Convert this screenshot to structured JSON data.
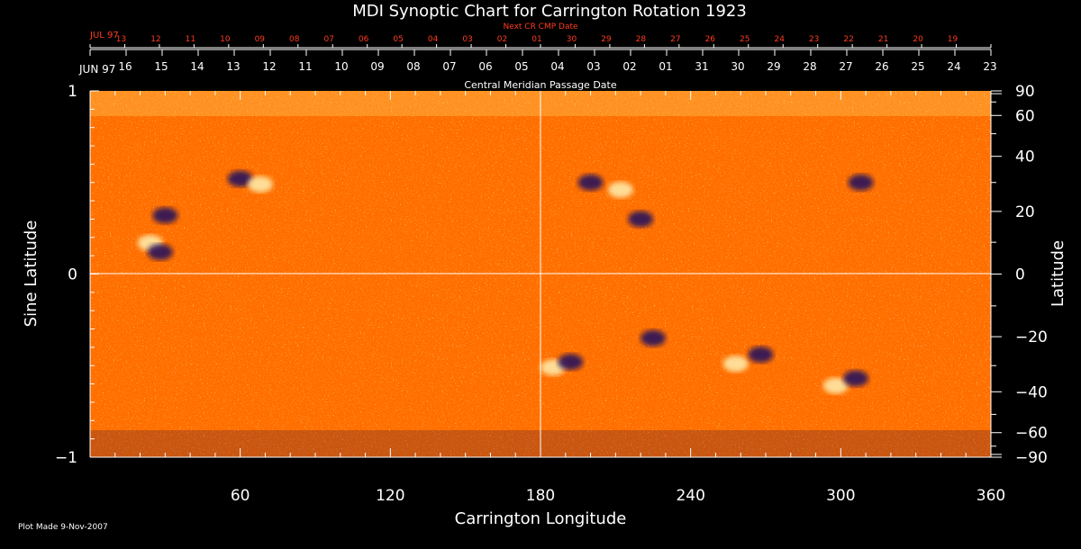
{
  "chart_data": {
    "type": "heatmap",
    "title": "MDI Synoptic Chart for Carrington Rotation 1923",
    "xlabel": "Carrington Longitude",
    "ylabel_left": "Sine Latitude",
    "ylabel_right": "Latitude",
    "xlim": [
      0,
      360
    ],
    "ylim": [
      -1,
      1
    ],
    "x_ticks": [
      60,
      120,
      180,
      240,
      300,
      360
    ],
    "y_left_ticks": [
      {
        "v": 1,
        "label": "1"
      },
      {
        "v": 0,
        "label": "0"
      },
      {
        "v": -1,
        "label": "−1"
      }
    ],
    "y_right_ticks": [
      {
        "deg": 90,
        "label": "90"
      },
      {
        "deg": 60,
        "label": "60"
      },
      {
        "deg": 40,
        "label": "40"
      },
      {
        "deg": 20,
        "label": "20"
      },
      {
        "deg": 0,
        "label": "0"
      },
      {
        "deg": -20,
        "label": "−20"
      },
      {
        "deg": -40,
        "label": "−40"
      },
      {
        "deg": -60,
        "label": "−60"
      },
      {
        "deg": -90,
        "label": "−90"
      }
    ],
    "top_axis_label": "Central Meridian Passage Date",
    "top_axis_month": "JUN 97",
    "top_axis_dates": [
      "16",
      "15",
      "14",
      "13",
      "12",
      "11",
      "10",
      "09",
      "08",
      "07",
      "06",
      "05",
      "04",
      "03",
      "02",
      "01",
      "31",
      "30",
      "29",
      "28",
      "27",
      "26",
      "25",
      "24",
      "23"
    ],
    "next_axis_label": "Next CR CMP Date",
    "next_axis_month": "JUL 97",
    "next_axis_dates": [
      "13",
      "12",
      "11",
      "10",
      "09",
      "08",
      "07",
      "06",
      "05",
      "04",
      "03",
      "02",
      "01",
      "30",
      "29",
      "28",
      "27",
      "26",
      "25",
      "24",
      "23",
      "22",
      "21",
      "20",
      "19"
    ],
    "grid": "crosshair at longitude 180 and sine latitude 0",
    "colors": {
      "background": "#ff6a00",
      "positive": "#fff0b0",
      "negative": "#1a1060",
      "axis": "#ffffff",
      "next_axis": "#ff3b1f"
    },
    "active_regions": [
      {
        "lon": 30,
        "sinlat": 0.32,
        "polarity": "negative"
      },
      {
        "lon": 24,
        "sinlat": 0.17,
        "polarity": "positive"
      },
      {
        "lon": 28,
        "sinlat": 0.12,
        "polarity": "negative"
      },
      {
        "lon": 60,
        "sinlat": 0.52,
        "polarity": "negative"
      },
      {
        "lon": 68,
        "sinlat": 0.49,
        "polarity": "positive"
      },
      {
        "lon": 200,
        "sinlat": 0.5,
        "polarity": "negative"
      },
      {
        "lon": 212,
        "sinlat": 0.46,
        "polarity": "positive"
      },
      {
        "lon": 220,
        "sinlat": 0.3,
        "polarity": "negative"
      },
      {
        "lon": 308,
        "sinlat": 0.5,
        "polarity": "negative"
      },
      {
        "lon": 185,
        "sinlat": -0.51,
        "polarity": "positive"
      },
      {
        "lon": 192,
        "sinlat": -0.48,
        "polarity": "negative"
      },
      {
        "lon": 225,
        "sinlat": -0.35,
        "polarity": "negative"
      },
      {
        "lon": 258,
        "sinlat": -0.49,
        "polarity": "positive"
      },
      {
        "lon": 268,
        "sinlat": -0.44,
        "polarity": "negative"
      },
      {
        "lon": 298,
        "sinlat": -0.61,
        "polarity": "positive"
      },
      {
        "lon": 306,
        "sinlat": -0.57,
        "polarity": "negative"
      }
    ]
  },
  "footer": {
    "plot_made": "Plot Made  9-Nov-2007"
  }
}
